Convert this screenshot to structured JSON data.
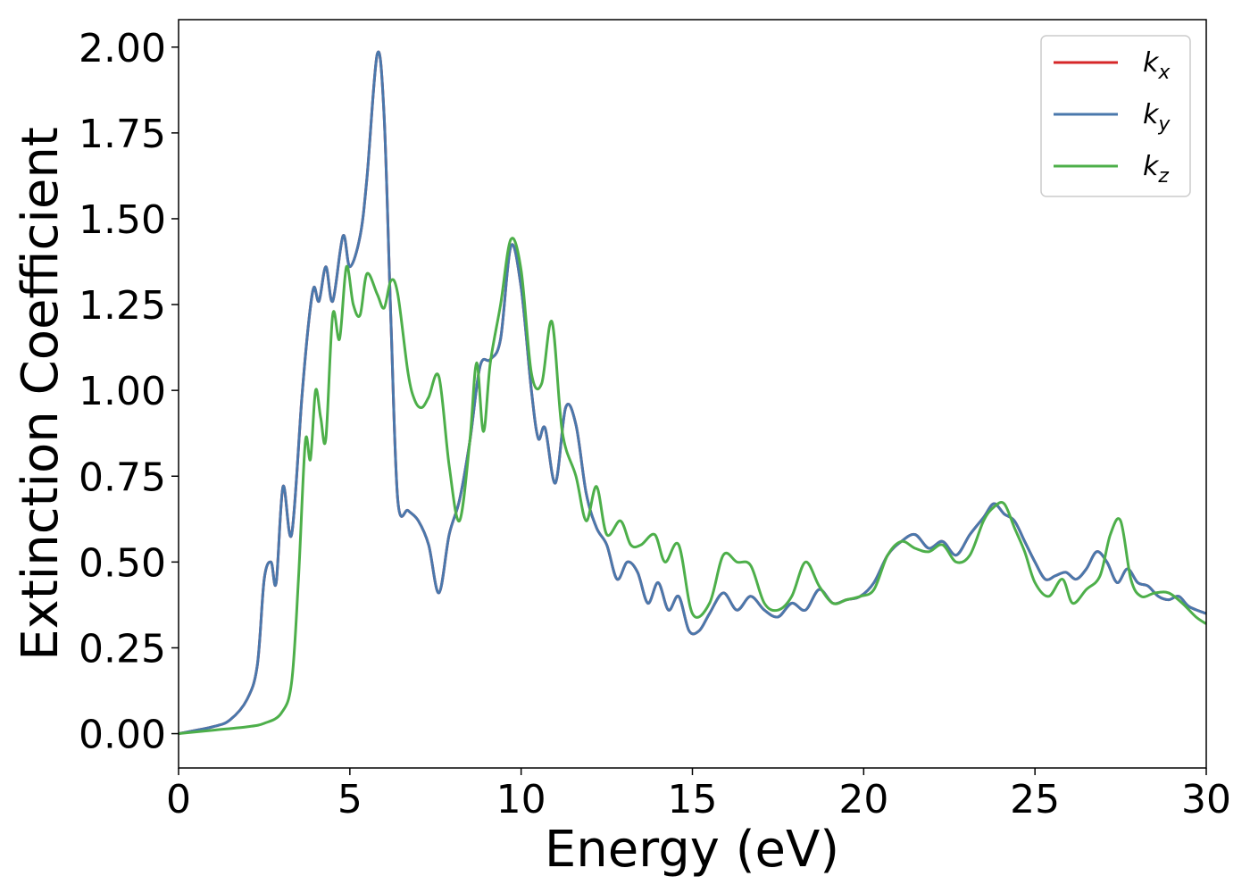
{
  "chart_data": {
    "type": "line",
    "title": "",
    "xlabel": "Energy (eV)",
    "ylabel": "Extinction Coefficient",
    "xlim": [
      0,
      30
    ],
    "ylim": [
      -0.1,
      2.08
    ],
    "xticks": [
      0,
      5,
      10,
      15,
      20,
      25,
      30
    ],
    "xtick_labels": [
      "0",
      "5",
      "10",
      "15",
      "20",
      "25",
      "30"
    ],
    "yticks": [
      0,
      0.25,
      0.5,
      0.75,
      1.0,
      1.25,
      1.5,
      1.75,
      2.0
    ],
    "ytick_labels": [
      "0.00",
      "0.25",
      "0.50",
      "0.75",
      "1.00",
      "1.25",
      "1.50",
      "1.75",
      "2.00"
    ],
    "grid": false,
    "legend_position": "top-right",
    "series": [
      {
        "name": "k_x",
        "label_base": "k",
        "label_sub": "x",
        "color": "#d62728",
        "x": [
          0,
          1,
          1.5,
          2,
          2.3,
          2.5,
          2.7,
          2.85,
          3.05,
          3.3,
          3.6,
          3.8,
          3.95,
          4.1,
          4.3,
          4.5,
          4.8,
          5.0,
          5.3,
          5.5,
          5.8,
          6.0,
          6.2,
          6.4,
          6.7,
          7.0,
          7.3,
          7.6,
          7.9,
          8.2,
          8.5,
          8.8,
          9.1,
          9.4,
          9.7,
          10.0,
          10.3,
          10.5,
          10.7,
          11.0,
          11.3,
          11.6,
          11.9,
          12.2,
          12.5,
          12.8,
          13.1,
          13.4,
          13.7,
          14.0,
          14.3,
          14.6,
          14.9,
          15.2,
          15.5,
          15.9,
          16.3,
          16.7,
          17.1,
          17.5,
          17.9,
          18.3,
          18.7,
          19.1,
          19.5,
          19.9,
          20.3,
          20.7,
          21.1,
          21.5,
          21.9,
          22.3,
          22.7,
          23.1,
          23.5,
          23.8,
          24.1,
          24.4,
          24.7,
          25.0,
          25.3,
          25.6,
          25.9,
          26.2,
          26.5,
          26.8,
          27.1,
          27.4,
          27.7,
          28.0,
          28.3,
          28.6,
          28.9,
          29.2,
          29.5,
          30.0
        ],
        "values": [
          0.0,
          0.02,
          0.04,
          0.1,
          0.2,
          0.45,
          0.5,
          0.44,
          0.72,
          0.58,
          0.98,
          1.2,
          1.3,
          1.26,
          1.36,
          1.26,
          1.45,
          1.36,
          1.45,
          1.62,
          1.98,
          1.8,
          1.2,
          0.68,
          0.65,
          0.62,
          0.55,
          0.41,
          0.58,
          0.68,
          0.85,
          1.07,
          1.09,
          1.15,
          1.42,
          1.3,
          1.0,
          0.86,
          0.89,
          0.73,
          0.95,
          0.9,
          0.7,
          0.6,
          0.55,
          0.45,
          0.5,
          0.47,
          0.38,
          0.44,
          0.36,
          0.4,
          0.3,
          0.3,
          0.35,
          0.41,
          0.36,
          0.4,
          0.36,
          0.34,
          0.38,
          0.36,
          0.42,
          0.38,
          0.39,
          0.4,
          0.44,
          0.52,
          0.56,
          0.58,
          0.54,
          0.56,
          0.52,
          0.58,
          0.63,
          0.67,
          0.64,
          0.62,
          0.56,
          0.5,
          0.45,
          0.46,
          0.47,
          0.45,
          0.48,
          0.53,
          0.5,
          0.44,
          0.48,
          0.44,
          0.43,
          0.4,
          0.39,
          0.4,
          0.37,
          0.35
        ]
      },
      {
        "name": "k_y",
        "label_base": "k",
        "label_sub": "y",
        "color": "#4a78ac",
        "x": [
          0,
          1,
          1.5,
          2,
          2.3,
          2.5,
          2.7,
          2.85,
          3.05,
          3.3,
          3.6,
          3.8,
          3.95,
          4.1,
          4.3,
          4.5,
          4.8,
          5.0,
          5.3,
          5.5,
          5.8,
          6.0,
          6.2,
          6.4,
          6.7,
          7.0,
          7.3,
          7.6,
          7.9,
          8.2,
          8.5,
          8.8,
          9.1,
          9.4,
          9.7,
          10.0,
          10.3,
          10.5,
          10.7,
          11.0,
          11.3,
          11.6,
          11.9,
          12.2,
          12.5,
          12.8,
          13.1,
          13.4,
          13.7,
          14.0,
          14.3,
          14.6,
          14.9,
          15.2,
          15.5,
          15.9,
          16.3,
          16.7,
          17.1,
          17.5,
          17.9,
          18.3,
          18.7,
          19.1,
          19.5,
          19.9,
          20.3,
          20.7,
          21.1,
          21.5,
          21.9,
          22.3,
          22.7,
          23.1,
          23.5,
          23.8,
          24.1,
          24.4,
          24.7,
          25.0,
          25.3,
          25.6,
          25.9,
          26.2,
          26.5,
          26.8,
          27.1,
          27.4,
          27.7,
          28.0,
          28.3,
          28.6,
          28.9,
          29.2,
          29.5,
          30.0
        ],
        "values": [
          0.0,
          0.02,
          0.04,
          0.1,
          0.2,
          0.45,
          0.5,
          0.44,
          0.72,
          0.58,
          0.98,
          1.2,
          1.3,
          1.26,
          1.36,
          1.26,
          1.45,
          1.36,
          1.45,
          1.62,
          1.98,
          1.8,
          1.2,
          0.68,
          0.65,
          0.62,
          0.55,
          0.41,
          0.58,
          0.68,
          0.85,
          1.07,
          1.09,
          1.15,
          1.42,
          1.3,
          1.0,
          0.86,
          0.89,
          0.73,
          0.95,
          0.9,
          0.7,
          0.6,
          0.55,
          0.45,
          0.5,
          0.47,
          0.38,
          0.44,
          0.36,
          0.4,
          0.3,
          0.3,
          0.35,
          0.41,
          0.36,
          0.4,
          0.36,
          0.34,
          0.38,
          0.36,
          0.42,
          0.38,
          0.39,
          0.4,
          0.44,
          0.52,
          0.56,
          0.58,
          0.54,
          0.56,
          0.52,
          0.58,
          0.63,
          0.67,
          0.64,
          0.62,
          0.56,
          0.5,
          0.45,
          0.46,
          0.47,
          0.45,
          0.48,
          0.53,
          0.5,
          0.44,
          0.48,
          0.44,
          0.43,
          0.4,
          0.39,
          0.4,
          0.37,
          0.35
        ]
      },
      {
        "name": "k_z",
        "label_base": "k",
        "label_sub": "z",
        "color": "#4daf4a",
        "x": [
          0,
          1,
          2,
          2.5,
          3.0,
          3.3,
          3.5,
          3.7,
          3.85,
          4.0,
          4.15,
          4.3,
          4.5,
          4.7,
          4.9,
          5.1,
          5.3,
          5.5,
          5.8,
          6.0,
          6.2,
          6.4,
          6.7,
          6.9,
          7.1,
          7.3,
          7.6,
          7.9,
          8.2,
          8.5,
          8.7,
          8.9,
          9.1,
          9.4,
          9.7,
          10.0,
          10.3,
          10.6,
          10.9,
          11.2,
          11.6,
          11.9,
          12.2,
          12.5,
          12.9,
          13.2,
          13.5,
          13.9,
          14.2,
          14.6,
          15.0,
          15.5,
          15.9,
          16.3,
          16.7,
          17.1,
          17.5,
          17.9,
          18.3,
          18.7,
          19.1,
          19.5,
          19.9,
          20.3,
          20.7,
          21.1,
          21.5,
          21.9,
          22.3,
          22.7,
          23.1,
          23.5,
          23.8,
          24.1,
          24.4,
          24.7,
          25.0,
          25.4,
          25.8,
          26.1,
          26.5,
          26.9,
          27.2,
          27.5,
          27.8,
          28.1,
          28.5,
          28.9,
          29.3,
          29.7,
          30.0
        ],
        "values": [
          0.0,
          0.01,
          0.02,
          0.03,
          0.06,
          0.15,
          0.45,
          0.85,
          0.8,
          1.0,
          0.92,
          0.86,
          1.22,
          1.15,
          1.36,
          1.25,
          1.22,
          1.34,
          1.28,
          1.24,
          1.32,
          1.28,
          1.05,
          0.97,
          0.95,
          0.98,
          1.04,
          0.78,
          0.62,
          0.85,
          1.08,
          0.88,
          1.08,
          1.25,
          1.44,
          1.35,
          1.05,
          1.02,
          1.2,
          0.88,
          0.75,
          0.62,
          0.72,
          0.58,
          0.62,
          0.55,
          0.55,
          0.58,
          0.5,
          0.55,
          0.35,
          0.38,
          0.52,
          0.5,
          0.49,
          0.38,
          0.36,
          0.4,
          0.5,
          0.43,
          0.38,
          0.39,
          0.4,
          0.42,
          0.52,
          0.56,
          0.54,
          0.53,
          0.55,
          0.5,
          0.52,
          0.62,
          0.66,
          0.67,
          0.6,
          0.53,
          0.44,
          0.4,
          0.45,
          0.38,
          0.42,
          0.46,
          0.58,
          0.62,
          0.45,
          0.4,
          0.41,
          0.41,
          0.38,
          0.34,
          0.32
        ]
      }
    ]
  }
}
